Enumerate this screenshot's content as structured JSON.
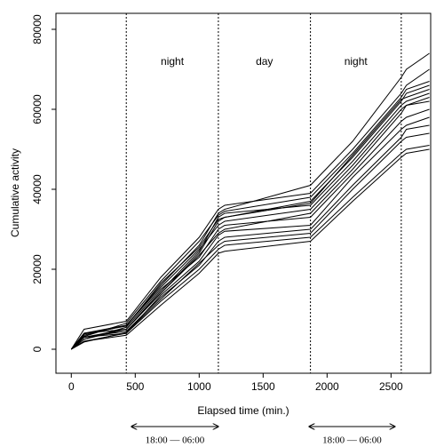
{
  "chart_data": {
    "type": "line",
    "xlabel": "Elapsed time  (min.)",
    "ylabel": "Cumulative activity",
    "xlim": [
      -120,
      2810
    ],
    "ylim": [
      -6000,
      84000
    ],
    "xticks": [
      0,
      500,
      1000,
      1500,
      2000,
      2500
    ],
    "yticks": [
      0,
      20000,
      40000,
      60000,
      80000
    ],
    "vlines": [
      430,
      1150,
      1870,
      2580
    ],
    "annotations": [
      "night",
      "day",
      "night"
    ],
    "periods": [
      {
        "label": "18:00 — 06:00",
        "start": 470,
        "end": 1150
      },
      {
        "label": "18:00 — 06:00",
        "start": 1860,
        "end": 2530
      }
    ],
    "x": [
      0,
      100,
      430,
      700,
      1000,
      1150,
      1200,
      1870,
      2200,
      2580,
      2620,
      2800
    ],
    "series": [
      {
        "color": "#000000",
        "values": [
          0,
          3000,
          5000,
          14000,
          24000,
          32000,
          33000,
          37000,
          48000,
          62000,
          64000,
          66000
        ]
      },
      {
        "color": "#000000",
        "values": [
          0,
          4000,
          6000,
          16000,
          26000,
          34000,
          35000,
          41000,
          52000,
          68000,
          70000,
          74000
        ]
      },
      {
        "color": "#000000",
        "values": [
          0,
          5000,
          7000,
          18000,
          28000,
          35000,
          36000,
          39000,
          50000,
          64000,
          66000,
          70000
        ]
      },
      {
        "color": "#000000",
        "values": [
          0,
          2000,
          4000,
          12000,
          20000,
          25000,
          26000,
          28000,
          38000,
          49000,
          50000,
          51000
        ]
      },
      {
        "color": "#000000",
        "values": [
          0,
          3000,
          4500,
          13000,
          21000,
          27000,
          28000,
          30000,
          41000,
          53000,
          55000,
          56000
        ]
      },
      {
        "color": "#000000",
        "values": [
          0,
          2500,
          5500,
          15000,
          23000,
          30000,
          31000,
          33000,
          44000,
          57000,
          58000,
          60000
        ]
      },
      {
        "color": "#000000",
        "values": [
          0,
          3500,
          6000,
          15500,
          25000,
          31000,
          32000,
          35000,
          46000,
          60000,
          61000,
          62000
        ]
      },
      {
        "color": "#000000",
        "values": [
          0,
          2000,
          3500,
          11000,
          19000,
          24000,
          24500,
          27000,
          37000,
          48000,
          49000,
          50000
        ]
      },
      {
        "color": "#000000",
        "values": [
          0,
          4000,
          5000,
          14500,
          24500,
          33000,
          34000,
          36000,
          47000,
          61000,
          62000,
          64000
        ]
      },
      {
        "color": "#000000",
        "values": [
          0,
          3000,
          4000,
          13500,
          22000,
          28500,
          29500,
          31000,
          43000,
          55000,
          56000,
          58000
        ]
      },
      {
        "color": "#000000",
        "values": [
          0,
          2500,
          5000,
          14000,
          23500,
          29000,
          30000,
          34000,
          45000,
          59000,
          61000,
          63000
        ]
      },
      {
        "color": "#000000",
        "values": [
          0,
          3200,
          6500,
          17000,
          27000,
          33500,
          34500,
          38000,
          49000,
          63000,
          65000,
          67000
        ]
      },
      {
        "color": "#000000",
        "values": [
          0,
          1800,
          4200,
          12500,
          21500,
          26000,
          27000,
          29000,
          40000,
          52000,
          53000,
          54000
        ]
      },
      {
        "color": "#000000",
        "values": [
          0,
          3800,
          5800,
          16500,
          25500,
          32500,
          33000,
          36500,
          48500,
          62500,
          63000,
          65000
        ]
      }
    ]
  }
}
